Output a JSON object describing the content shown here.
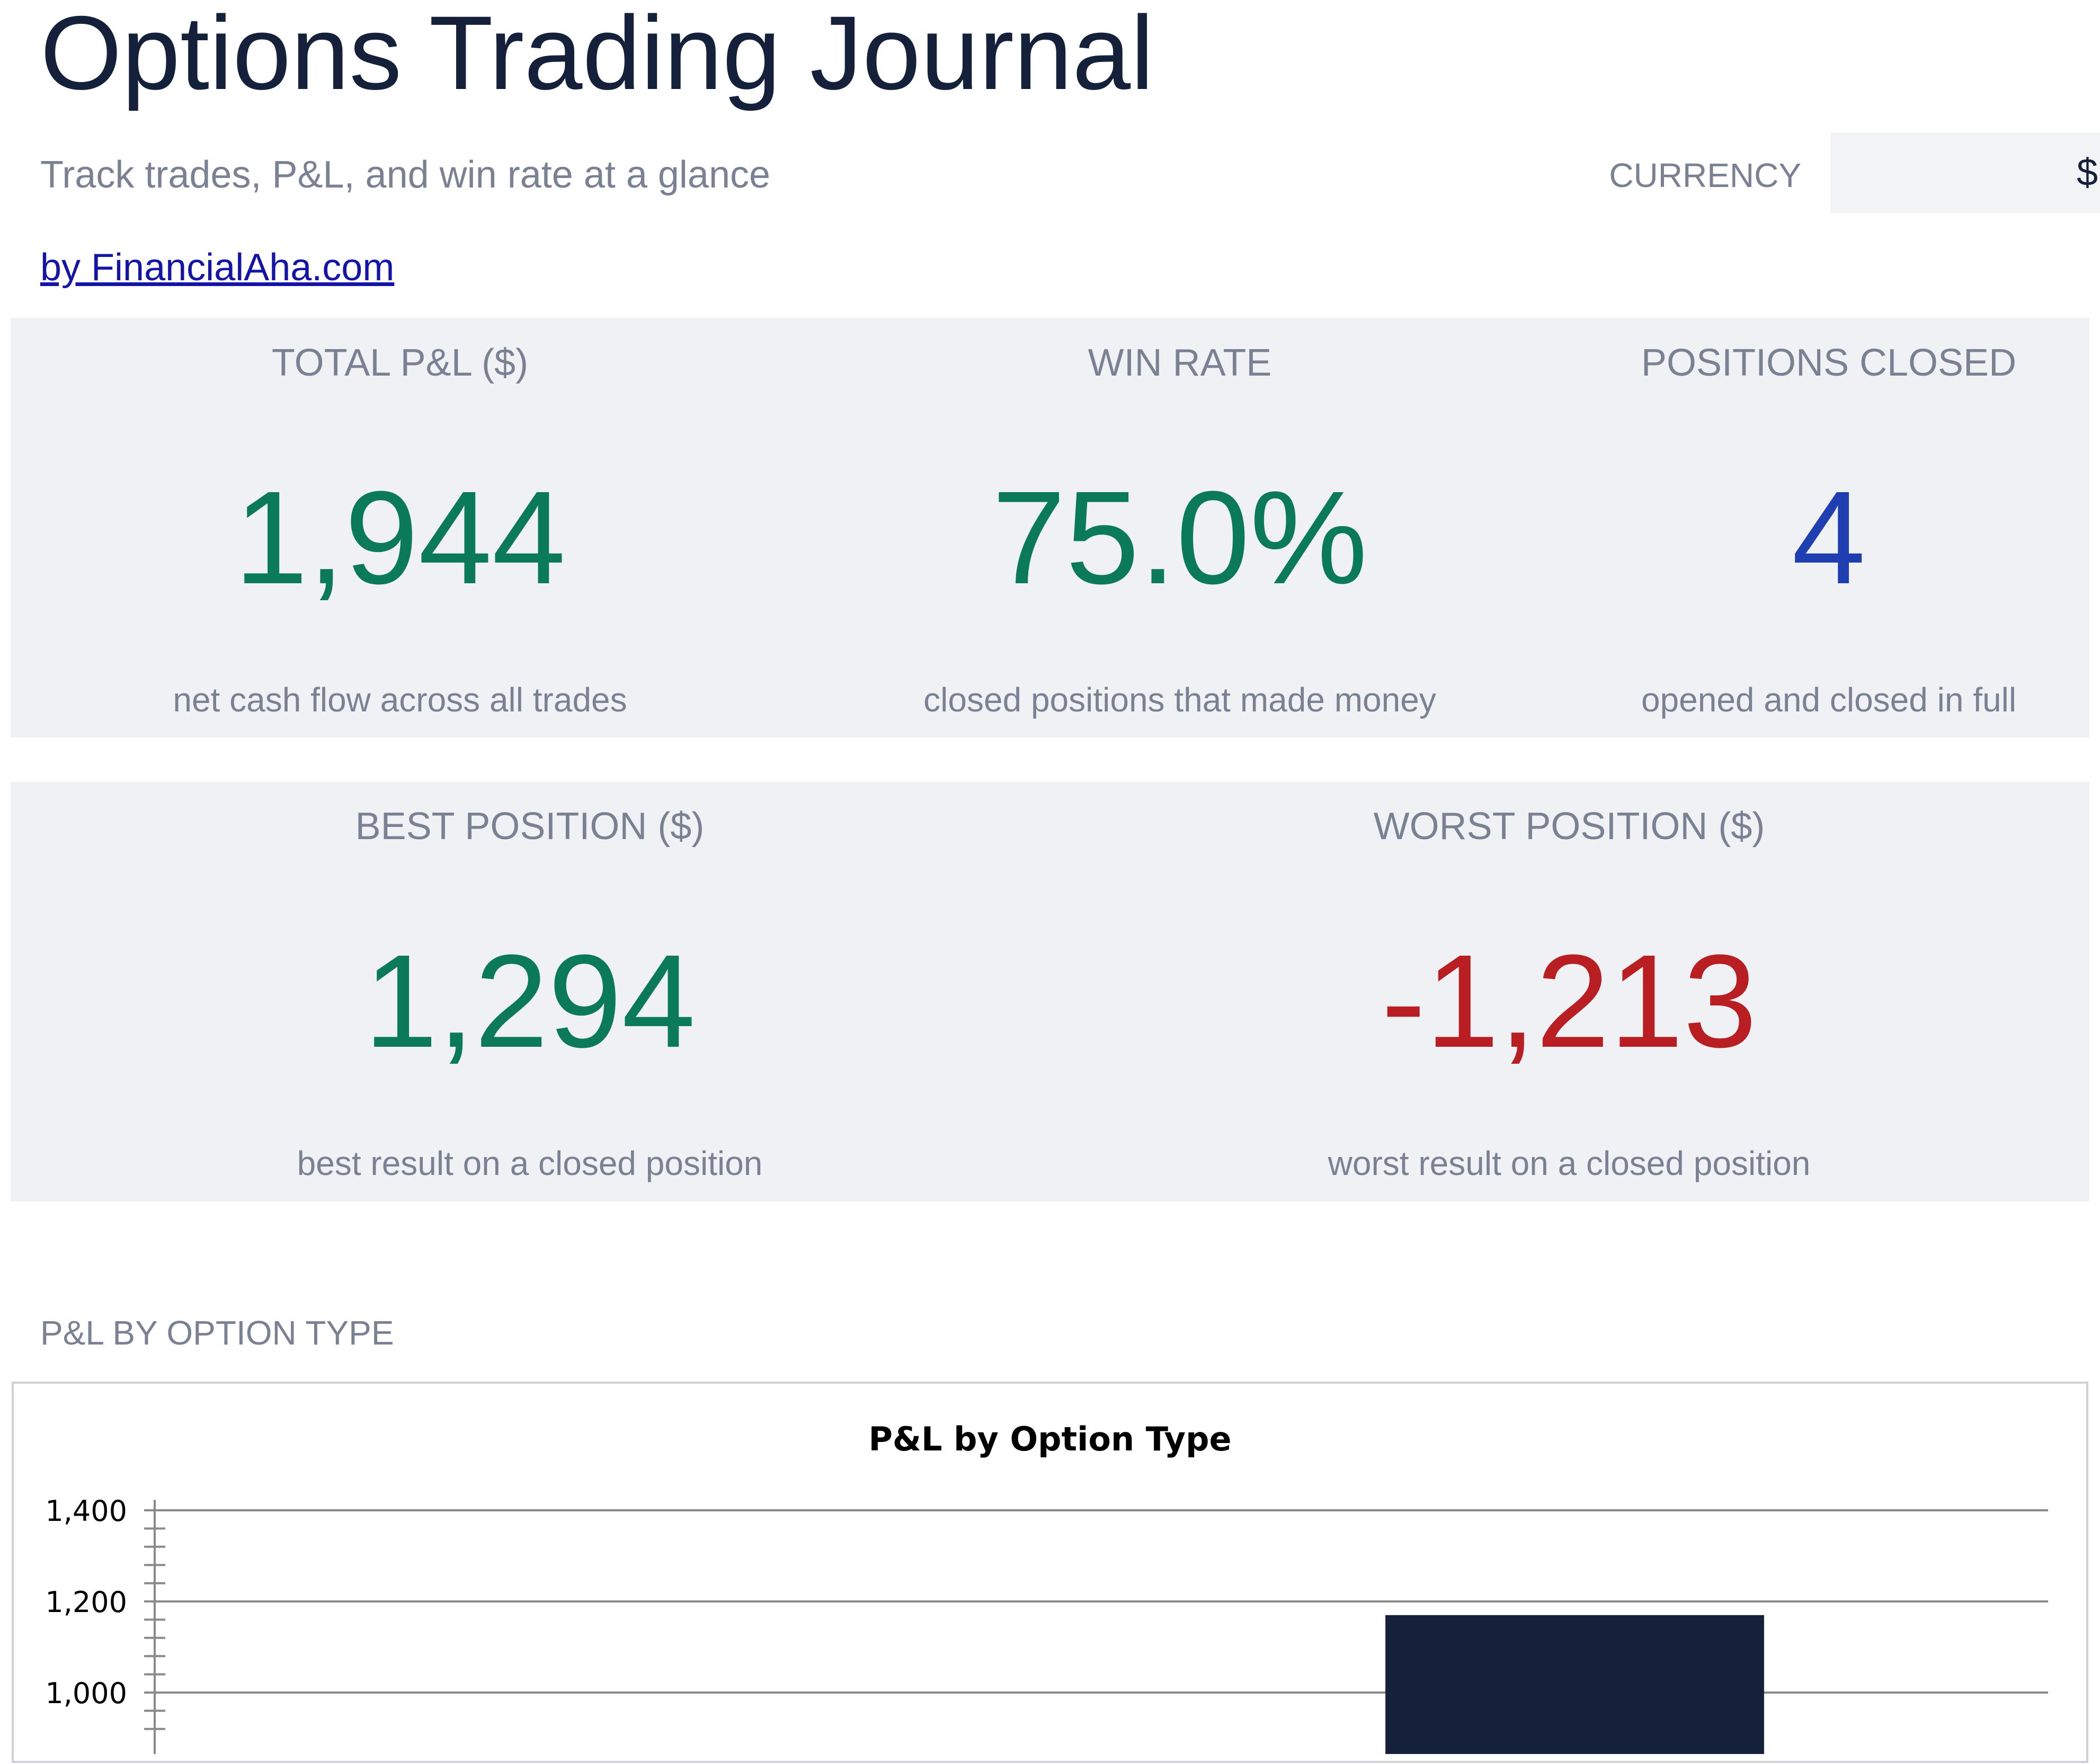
{
  "header": {
    "title": "Options Trading Journal",
    "subtitle": "Track trades, P&L, and win rate at a glance",
    "byline": "by FinancialAha.com",
    "currency_label": "CURRENCY",
    "currency_value": "$"
  },
  "kpis_row1": [
    {
      "label": "TOTAL P&L ($)",
      "value": "1,944",
      "desc": "net cash flow across all trades"
    },
    {
      "label": "WIN RATE",
      "value": "75.0%",
      "desc": "closed positions that made money"
    },
    {
      "label": "POSITIONS CLOSED",
      "value": "4",
      "desc": "opened and closed in full"
    }
  ],
  "kpis_row2": [
    {
      "label": "BEST POSITION ($)",
      "value": "1,294",
      "desc": "best result on a closed position"
    },
    {
      "label": "WORST POSITION ($)",
      "value": "-1,213",
      "desc": "worst result on a closed position"
    }
  ],
  "colors": {
    "positive": "#0a7a5a",
    "neutral": "#1f3fb0",
    "negative": "#b81e22",
    "bar": "#15213b"
  },
  "section": {
    "chart_label": "P&L BY OPTION TYPE"
  },
  "chart_data": {
    "type": "bar",
    "title": "P&L by Option Type",
    "xlabel": "",
    "ylabel": "",
    "ylim": [
      1000,
      1400
    ],
    "yticks": [
      1000,
      1200,
      1400
    ],
    "ytick_labels": [
      "1,000",
      "1,200",
      "1,400"
    ],
    "grid": true,
    "categories": [
      "",
      ""
    ],
    "values": [
      null,
      1170
    ]
  }
}
